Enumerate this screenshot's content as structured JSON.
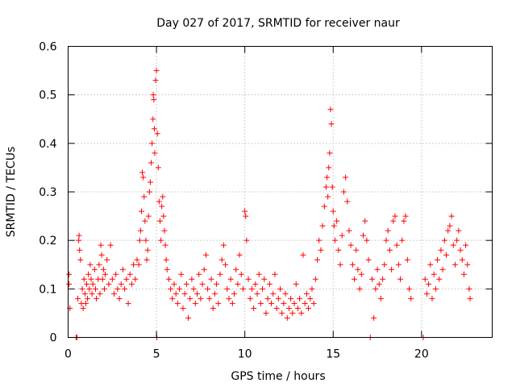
{
  "chart_data": {
    "type": "scatter",
    "title": "Day 027 of 2017, SRMTID for receiver naur",
    "xlabel": "GPS time / hours",
    "ylabel": "SRMTID / TECUs",
    "xlim": [
      0,
      24
    ],
    "ylim": [
      0,
      0.6
    ],
    "xticks": [
      0,
      5,
      10,
      15,
      20
    ],
    "xtick_labels": [
      "0",
      "5",
      "10",
      "15",
      "20"
    ],
    "yticks": [
      0,
      0.1,
      0.2,
      0.3,
      0.4,
      0.5,
      0.6
    ],
    "ytick_labels": [
      "0",
      "0.1",
      "0.2",
      "0.3",
      "0.4",
      "0.5",
      "0.6"
    ],
    "grid": true,
    "marker": "+",
    "color": "#ff0000",
    "series": [
      {
        "name": "SRMTID",
        "points": [
          [
            0.05,
            0.13
          ],
          [
            0.05,
            0.11
          ],
          [
            0.1,
            0.06
          ],
          [
            0.45,
            0.0
          ],
          [
            0.5,
            0.0
          ],
          [
            0.55,
            0.08
          ],
          [
            0.6,
            0.2
          ],
          [
            0.62,
            0.21
          ],
          [
            0.65,
            0.18
          ],
          [
            0.7,
            0.16
          ],
          [
            0.75,
            0.07
          ],
          [
            0.8,
            0.1
          ],
          [
            0.85,
            0.06
          ],
          [
            0.9,
            0.12
          ],
          [
            0.95,
            0.09
          ],
          [
            1.0,
            0.07
          ],
          [
            1.05,
            0.11
          ],
          [
            1.1,
            0.08
          ],
          [
            1.15,
            0.13
          ],
          [
            1.2,
            0.1
          ],
          [
            1.25,
            0.15
          ],
          [
            1.3,
            0.12
          ],
          [
            1.35,
            0.09
          ],
          [
            1.4,
            0.11
          ],
          [
            1.5,
            0.14
          ],
          [
            1.55,
            0.1
          ],
          [
            1.6,
            0.08
          ],
          [
            1.7,
            0.12
          ],
          [
            1.75,
            0.15
          ],
          [
            1.8,
            0.09
          ],
          [
            1.85,
            0.19
          ],
          [
            1.9,
            0.17
          ],
          [
            1.95,
            0.12
          ],
          [
            2.0,
            0.14
          ],
          [
            2.05,
            0.1
          ],
          [
            2.1,
            0.13
          ],
          [
            2.2,
            0.16
          ],
          [
            2.3,
            0.11
          ],
          [
            2.4,
            0.19
          ],
          [
            2.5,
            0.12
          ],
          [
            2.6,
            0.09
          ],
          [
            2.7,
            0.13
          ],
          [
            2.8,
            0.1
          ],
          [
            2.9,
            0.08
          ],
          [
            3.0,
            0.11
          ],
          [
            3.1,
            0.14
          ],
          [
            3.2,
            0.1
          ],
          [
            3.3,
            0.12
          ],
          [
            3.4,
            0.07
          ],
          [
            3.5,
            0.13
          ],
          [
            3.6,
            0.11
          ],
          [
            3.7,
            0.15
          ],
          [
            3.8,
            0.12
          ],
          [
            3.9,
            0.16
          ],
          [
            4.0,
            0.15
          ],
          [
            4.05,
            0.2
          ],
          [
            4.1,
            0.22
          ],
          [
            4.15,
            0.26
          ],
          [
            4.2,
            0.34
          ],
          [
            4.25,
            0.33
          ],
          [
            4.3,
            0.29
          ],
          [
            4.35,
            0.24
          ],
          [
            4.4,
            0.2
          ],
          [
            4.45,
            0.16
          ],
          [
            4.5,
            0.18
          ],
          [
            4.55,
            0.25
          ],
          [
            4.6,
            0.3
          ],
          [
            4.65,
            0.32
          ],
          [
            4.7,
            0.36
          ],
          [
            4.75,
            0.4
          ],
          [
            4.8,
            0.45
          ],
          [
            4.82,
            0.5
          ],
          [
            4.85,
            0.49
          ],
          [
            4.88,
            0.43
          ],
          [
            4.9,
            0.38
          ],
          [
            4.95,
            0.53
          ],
          [
            5.0,
            0.55
          ],
          [
            5.02,
            0.0
          ],
          [
            5.05,
            0.42
          ],
          [
            5.1,
            0.35
          ],
          [
            5.15,
            0.28
          ],
          [
            5.2,
            0.24
          ],
          [
            5.25,
            0.2
          ],
          [
            5.3,
            0.27
          ],
          [
            5.35,
            0.29
          ],
          [
            5.4,
            0.25
          ],
          [
            5.45,
            0.22
          ],
          [
            5.5,
            0.19
          ],
          [
            5.55,
            0.16
          ],
          [
            5.6,
            0.14
          ],
          [
            5.7,
            0.12
          ],
          [
            5.8,
            0.1
          ],
          [
            5.9,
            0.08
          ],
          [
            6.0,
            0.11
          ],
          [
            6.1,
            0.09
          ],
          [
            6.2,
            0.07
          ],
          [
            6.3,
            0.1
          ],
          [
            6.4,
            0.13
          ],
          [
            6.5,
            0.06
          ],
          [
            6.6,
            0.09
          ],
          [
            6.7,
            0.11
          ],
          [
            6.8,
            0.04
          ],
          [
            6.9,
            0.08
          ],
          [
            7.0,
            0.12
          ],
          [
            7.1,
            0.1
          ],
          [
            7.2,
            0.07
          ],
          [
            7.3,
            0.09
          ],
          [
            7.4,
            0.13
          ],
          [
            7.5,
            0.08
          ],
          [
            7.6,
            0.11
          ],
          [
            7.7,
            0.14
          ],
          [
            7.8,
            0.17
          ],
          [
            7.9,
            0.1
          ],
          [
            8.0,
            0.08
          ],
          [
            8.1,
            0.12
          ],
          [
            8.2,
            0.06
          ],
          [
            8.3,
            0.09
          ],
          [
            8.4,
            0.11
          ],
          [
            8.5,
            0.07
          ],
          [
            8.6,
            0.13
          ],
          [
            8.7,
            0.16
          ],
          [
            8.8,
            0.19
          ],
          [
            8.9,
            0.15
          ],
          [
            9.0,
            0.1
          ],
          [
            9.1,
            0.08
          ],
          [
            9.2,
            0.12
          ],
          [
            9.3,
            0.07
          ],
          [
            9.4,
            0.09
          ],
          [
            9.5,
            0.14
          ],
          [
            9.6,
            0.11
          ],
          [
            9.7,
            0.17
          ],
          [
            9.8,
            0.13
          ],
          [
            9.9,
            0.1
          ],
          [
            10.0,
            0.26
          ],
          [
            10.05,
            0.25
          ],
          [
            10.1,
            0.2
          ],
          [
            10.2,
            0.12
          ],
          [
            10.3,
            0.08
          ],
          [
            10.4,
            0.1
          ],
          [
            10.5,
            0.06
          ],
          [
            10.6,
            0.11
          ],
          [
            10.7,
            0.09
          ],
          [
            10.8,
            0.13
          ],
          [
            10.9,
            0.07
          ],
          [
            11.0,
            0.1
          ],
          [
            11.1,
            0.12
          ],
          [
            11.2,
            0.05
          ],
          [
            11.3,
            0.08
          ],
          [
            11.4,
            0.11
          ],
          [
            11.5,
            0.07
          ],
          [
            11.6,
            0.09
          ],
          [
            11.7,
            0.13
          ],
          [
            11.8,
            0.06
          ],
          [
            11.9,
            0.08
          ],
          [
            12.0,
            0.1
          ],
          [
            12.1,
            0.05
          ],
          [
            12.2,
            0.07
          ],
          [
            12.3,
            0.09
          ],
          [
            12.4,
            0.04
          ],
          [
            12.5,
            0.06
          ],
          [
            12.6,
            0.08
          ],
          [
            12.7,
            0.05
          ],
          [
            12.8,
            0.07
          ],
          [
            12.9,
            0.11
          ],
          [
            13.0,
            0.06
          ],
          [
            13.1,
            0.08
          ],
          [
            13.2,
            0.05
          ],
          [
            13.3,
            0.17
          ],
          [
            13.4,
            0.07
          ],
          [
            13.5,
            0.09
          ],
          [
            13.6,
            0.06
          ],
          [
            13.7,
            0.08
          ],
          [
            13.8,
            0.1
          ],
          [
            13.9,
            0.07
          ],
          [
            14.0,
            0.12
          ],
          [
            14.1,
            0.16
          ],
          [
            14.2,
            0.2
          ],
          [
            14.3,
            0.18
          ],
          [
            14.4,
            0.23
          ],
          [
            14.5,
            0.27
          ],
          [
            14.6,
            0.31
          ],
          [
            14.65,
            0.33
          ],
          [
            14.7,
            0.29
          ],
          [
            14.75,
            0.35
          ],
          [
            14.8,
            0.38
          ],
          [
            14.85,
            0.47
          ],
          [
            14.9,
            0.44
          ],
          [
            14.95,
            0.31
          ],
          [
            15.0,
            0.26
          ],
          [
            15.05,
            0.23
          ],
          [
            15.1,
            0.2
          ],
          [
            15.2,
            0.24
          ],
          [
            15.3,
            0.18
          ],
          [
            15.4,
            0.15
          ],
          [
            15.5,
            0.21
          ],
          [
            15.6,
            0.3
          ],
          [
            15.7,
            0.33
          ],
          [
            15.8,
            0.28
          ],
          [
            15.9,
            0.22
          ],
          [
            16.0,
            0.19
          ],
          [
            16.1,
            0.15
          ],
          [
            16.2,
            0.12
          ],
          [
            16.3,
            0.18
          ],
          [
            16.4,
            0.14
          ],
          [
            16.5,
            0.1
          ],
          [
            16.6,
            0.13
          ],
          [
            16.7,
            0.21
          ],
          [
            16.8,
            0.24
          ],
          [
            16.9,
            0.2
          ],
          [
            17.0,
            0.16
          ],
          [
            17.1,
            0.0
          ],
          [
            17.2,
            0.12
          ],
          [
            17.3,
            0.04
          ],
          [
            17.4,
            0.1
          ],
          [
            17.5,
            0.14
          ],
          [
            17.6,
            0.11
          ],
          [
            17.7,
            0.08
          ],
          [
            17.8,
            0.12
          ],
          [
            17.9,
            0.15
          ],
          [
            18.0,
            0.2
          ],
          [
            18.1,
            0.22
          ],
          [
            18.2,
            0.18
          ],
          [
            18.3,
            0.14
          ],
          [
            18.4,
            0.24
          ],
          [
            18.5,
            0.25
          ],
          [
            18.6,
            0.19
          ],
          [
            18.7,
            0.15
          ],
          [
            18.8,
            0.12
          ],
          [
            18.9,
            0.2
          ],
          [
            19.0,
            0.24
          ],
          [
            19.1,
            0.25
          ],
          [
            19.2,
            0.16
          ],
          [
            19.3,
            0.1
          ],
          [
            19.4,
            0.08
          ],
          [
            20.1,
            0.0
          ],
          [
            20.2,
            0.12
          ],
          [
            20.3,
            0.09
          ],
          [
            20.4,
            0.11
          ],
          [
            20.5,
            0.15
          ],
          [
            20.6,
            0.08
          ],
          [
            20.7,
            0.13
          ],
          [
            20.8,
            0.1
          ],
          [
            20.9,
            0.16
          ],
          [
            21.0,
            0.12
          ],
          [
            21.1,
            0.18
          ],
          [
            21.2,
            0.14
          ],
          [
            21.3,
            0.2
          ],
          [
            21.4,
            0.17
          ],
          [
            21.5,
            0.22
          ],
          [
            21.6,
            0.23
          ],
          [
            21.7,
            0.25
          ],
          [
            21.8,
            0.19
          ],
          [
            21.9,
            0.15
          ],
          [
            22.0,
            0.2
          ],
          [
            22.1,
            0.22
          ],
          [
            22.2,
            0.18
          ],
          [
            22.3,
            0.16
          ],
          [
            22.4,
            0.13
          ],
          [
            22.5,
            0.19
          ],
          [
            22.6,
            0.15
          ],
          [
            22.7,
            0.1
          ],
          [
            22.75,
            0.08
          ]
        ]
      }
    ]
  }
}
